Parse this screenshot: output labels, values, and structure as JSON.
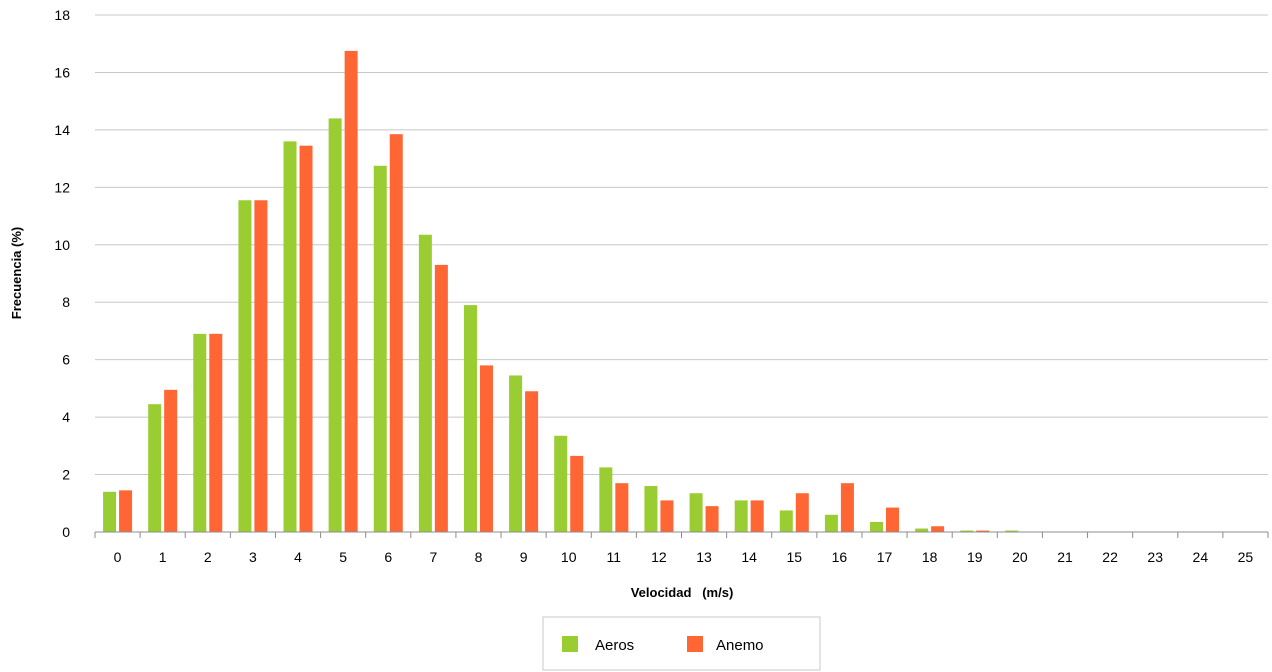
{
  "chart_data": {
    "type": "bar",
    "title": "",
    "xlabel": "Velocidad   (m/s)",
    "ylabel": "Frecuencia (%)",
    "categories": [
      "0",
      "1",
      "2",
      "3",
      "4",
      "5",
      "6",
      "7",
      "8",
      "9",
      "10",
      "11",
      "12",
      "13",
      "14",
      "15",
      "16",
      "17",
      "18",
      "19",
      "20",
      "21",
      "22",
      "23",
      "24",
      "25"
    ],
    "ylim": [
      0,
      18
    ],
    "yticks": [
      "0",
      "2",
      "4",
      "6",
      "8",
      "10",
      "12",
      "14",
      "16",
      "18"
    ],
    "grid": true,
    "legend_position": "bottom",
    "series": [
      {
        "name": "Aeros",
        "color": "#9ACD32",
        "values": [
          1.4,
          4.45,
          6.9,
          11.55,
          13.6,
          14.4,
          12.75,
          10.35,
          7.9,
          5.45,
          3.35,
          2.25,
          1.6,
          1.35,
          1.1,
          0.75,
          0.6,
          0.35,
          0.12,
          0.05,
          0.05,
          0,
          0,
          0,
          0,
          0
        ]
      },
      {
        "name": "Anemo",
        "color": "#FF6633",
        "values": [
          1.45,
          4.95,
          6.9,
          11.55,
          13.45,
          16.75,
          13.85,
          9.3,
          5.8,
          4.9,
          2.65,
          1.7,
          1.1,
          0.9,
          1.1,
          1.35,
          1.7,
          0.85,
          0.2,
          0.05,
          0,
          0,
          0,
          0,
          0,
          0
        ]
      }
    ]
  }
}
